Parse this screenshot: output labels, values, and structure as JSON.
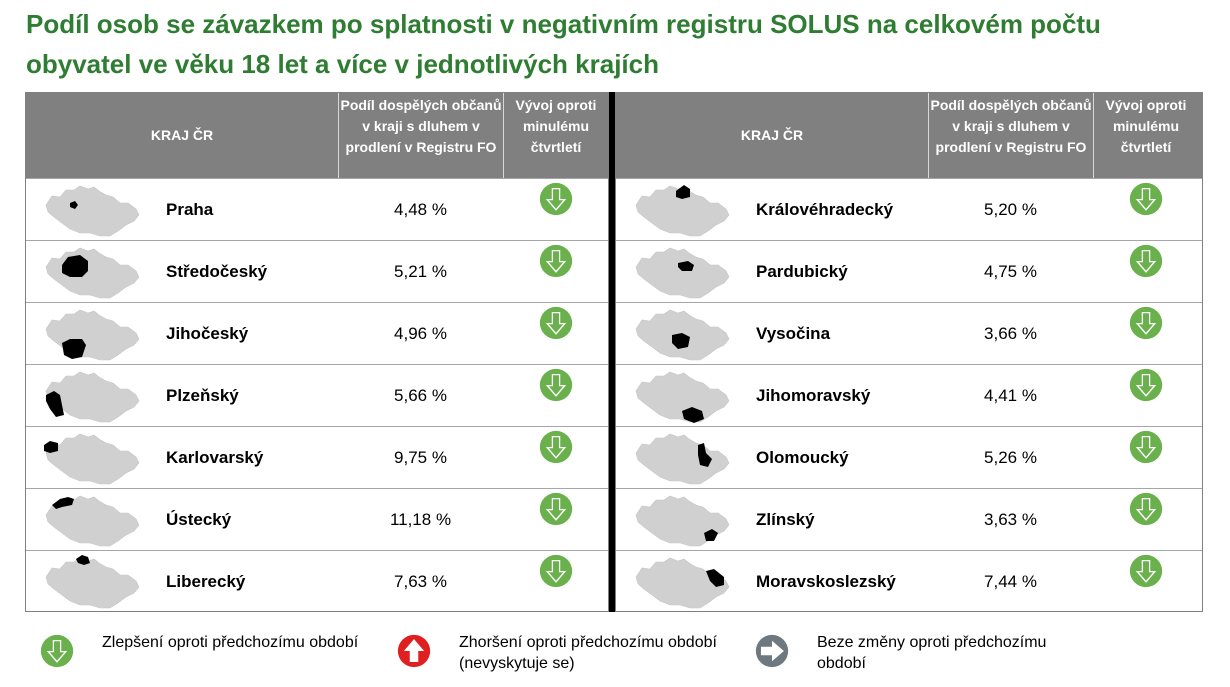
{
  "title": "Podíl osob se závazkem po splatnosti v negativním registru SOLUS na celkovém počtu obyvatel ve věku 18 let a více v jednotlivých krajích",
  "headers": {
    "region": "KRAJ ČR",
    "share": "Podíl dospělých občanů v kraji s dluhem v prodlení v Registru FO",
    "trend": "Vývoj oproti minulému čtvrtletí"
  },
  "left_rows": [
    {
      "name": "Praha",
      "value": "4,48 %",
      "trend_icon": "arrow-down-icon"
    },
    {
      "name": "Středočeský",
      "value": "5,21 %",
      "trend_icon": "arrow-down-icon"
    },
    {
      "name": "Jihočeský",
      "value": "4,96 %",
      "trend_icon": "arrow-down-icon"
    },
    {
      "name": "Plzeňský",
      "value": "5,66 %",
      "trend_icon": "arrow-down-icon"
    },
    {
      "name": "Karlovarský",
      "value": "9,75 %",
      "trend_icon": "arrow-down-icon"
    },
    {
      "name": "Ústecký",
      "value": "11,18 %",
      "trend_icon": "arrow-down-icon"
    },
    {
      "name": "Liberecký",
      "value": "7,63 %",
      "trend_icon": "arrow-down-icon"
    }
  ],
  "right_rows": [
    {
      "name": "Královéhradecký",
      "value": "5,20 %",
      "trend_icon": "arrow-down-icon"
    },
    {
      "name": "Pardubický",
      "value": "4,75 %",
      "trend_icon": "arrow-down-icon"
    },
    {
      "name": "Vysočina",
      "value": "3,66 %",
      "trend_icon": "arrow-down-icon"
    },
    {
      "name": "Jihomoravský",
      "value": "4,41 %",
      "trend_icon": "arrow-down-icon"
    },
    {
      "name": "Olomoucký",
      "value": "5,26 %",
      "trend_icon": "arrow-down-icon"
    },
    {
      "name": "Zlínský",
      "value": "3,63 %",
      "trend_icon": "arrow-down-icon"
    },
    {
      "name": "Moravskoslezský",
      "value": "7,44 %",
      "trend_icon": "arrow-down-icon"
    }
  ],
  "legend": [
    {
      "icon": "arrow-down-icon",
      "color": "#6ab04c",
      "text": "Zlepšení oproti předchozímu období"
    },
    {
      "icon": "arrow-up-icon",
      "color": "#e02020",
      "text": "Zhoršení oproti předchozímu období (nevyskytuje se)"
    },
    {
      "icon": "arrow-right-icon",
      "color": "#6e7880",
      "text": "Beze změny oproti předchozímu období"
    }
  ],
  "colors": {
    "title": "#2e7d32",
    "header_bg": "#808080",
    "arrow_green": "#6ab04c",
    "map_gray": "#d0d0d0",
    "region_highlight": "#000000"
  }
}
